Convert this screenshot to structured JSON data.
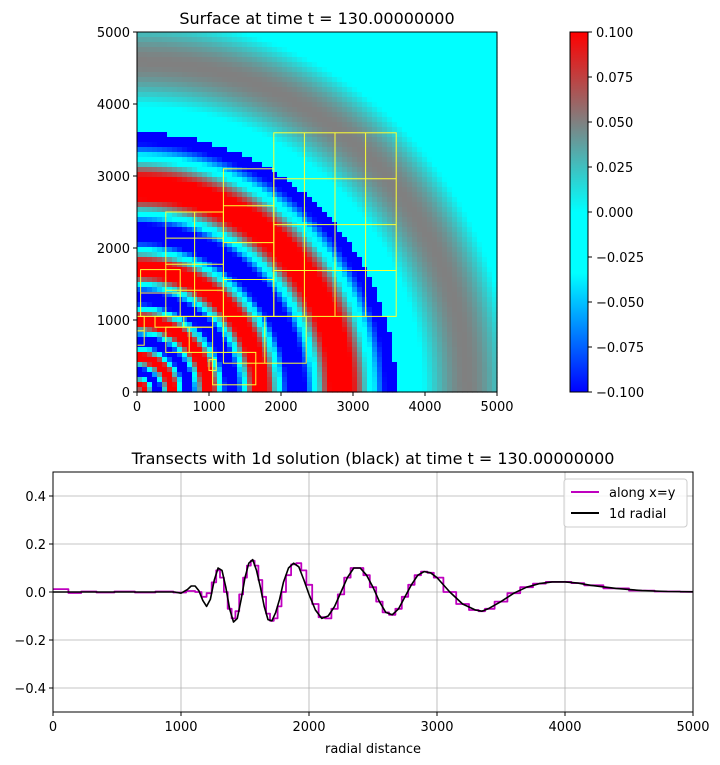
{
  "chart_data": [
    {
      "type": "heatmap",
      "title": "Surface at time t =   130.00000000",
      "xlim": [
        0,
        5000
      ],
      "ylim": [
        0,
        5000
      ],
      "xticks": [
        "0",
        "1000",
        "2000",
        "3000",
        "4000",
        "5000"
      ],
      "yticks": [
        "0",
        "1000",
        "2000",
        "3000",
        "4000",
        "5000"
      ],
      "field": {
        "kind": "radial outward-propagating wave (cylindrical, centered at origin)",
        "front_radius": 5200,
        "wave_radii_peak": [
          1560,
          1900,
          2340,
          2930
        ],
        "background_value": 0.0
      },
      "colorbar": {
        "range": [
          -0.1,
          0.1
        ],
        "ticks": [
          "0.100",
          "0.075",
          "0.050",
          "0.025",
          "0.000",
          "−0.025",
          "−0.050",
          "−0.075",
          "−0.100"
        ],
        "colormap": [
          "#0000ff",
          "#00ffff",
          "#808080",
          "#ff0000"
        ]
      },
      "grid_patches": [
        {
          "x": [
            1900,
            3600
          ],
          "y": [
            1050,
            3600
          ],
          "cols": 4,
          "rows": 4
        },
        {
          "x": [
            1200,
            1900
          ],
          "y": [
            1050,
            3100
          ],
          "cols": 1,
          "rows": 4
        },
        {
          "x": [
            400,
            1200
          ],
          "y": [
            1050,
            2500
          ],
          "cols": 2,
          "rows": 4
        },
        {
          "x": [
            50,
            600
          ],
          "y": [
            1050,
            1700
          ],
          "cols": 1,
          "rows": 2
        },
        {
          "x": [
            1200,
            2350
          ],
          "y": [
            400,
            1050
          ],
          "cols": 2,
          "rows": 1
        },
        {
          "x": [
            250,
            1050
          ],
          "y": [
            900,
            1050
          ],
          "cols": 2,
          "rows": 1
        },
        {
          "x": [
            400,
            1050
          ],
          "y": [
            550,
            900
          ],
          "cols": 2,
          "rows": 1
        },
        {
          "x": [
            1050,
            1650
          ],
          "y": [
            100,
            550
          ],
          "cols": 1,
          "rows": 1
        },
        {
          "x": [
            1000,
            1100
          ],
          "y": [
            300,
            450
          ],
          "cols": 1,
          "rows": 1
        },
        {
          "x": [
            0,
            100
          ],
          "y": [
            650,
            1050
          ],
          "cols": 1,
          "rows": 2
        }
      ],
      "patch_color": "#ffff33"
    },
    {
      "type": "line",
      "title": "Transects with 1d solution (black) at time t =   130.00000000",
      "xlabel": "radial distance",
      "xlim": [
        0,
        5000
      ],
      "ylim": [
        -0.5,
        0.5
      ],
      "xticks": [
        "0",
        "1000",
        "2000",
        "3000",
        "4000",
        "5000"
      ],
      "yticks": [
        "−0.4",
        "−0.2",
        "0.0",
        "0.2",
        "0.4"
      ],
      "grid": true,
      "legend_position": "top-right",
      "series": [
        {
          "name": "along x=y",
          "color": "#bf00bf",
          "style": "step",
          "x": [
            0,
            80,
            160,
            280,
            400,
            560,
            720,
            880,
            1000,
            1080,
            1140,
            1180,
            1220,
            1260,
            1290,
            1320,
            1350,
            1380,
            1410,
            1440,
            1470,
            1500,
            1530,
            1560,
            1590,
            1620,
            1650,
            1680,
            1710,
            1740,
            1770,
            1800,
            1840,
            1880,
            1920,
            1960,
            2000,
            2050,
            2100,
            2150,
            2200,
            2250,
            2300,
            2350,
            2400,
            2450,
            2500,
            2550,
            2600,
            2650,
            2700,
            2750,
            2800,
            2850,
            2900,
            2950,
            3000,
            3100,
            3200,
            3300,
            3350,
            3400,
            3500,
            3600,
            3700,
            3800,
            3900,
            4000,
            4100,
            4200,
            4400,
            4600,
            4800,
            5000
          ],
          "y": [
            0.012,
            0.012,
            -0.004,
            0.002,
            -0.002,
            0.002,
            -0.002,
            0.002,
            -0.002,
            0.004,
            0.0,
            -0.02,
            -0.005,
            0.04,
            0.09,
            0.06,
            0.0,
            -0.07,
            -0.11,
            -0.08,
            -0.01,
            0.06,
            0.11,
            0.13,
            0.11,
            0.05,
            -0.02,
            -0.09,
            -0.12,
            -0.11,
            -0.06,
            0.0,
            0.07,
            0.115,
            0.12,
            0.09,
            0.03,
            -0.05,
            -0.105,
            -0.11,
            -0.07,
            -0.01,
            0.06,
            0.1,
            0.1,
            0.07,
            0.02,
            -0.04,
            -0.085,
            -0.095,
            -0.07,
            -0.02,
            0.03,
            0.07,
            0.085,
            0.08,
            0.06,
            0.0,
            -0.05,
            -0.075,
            -0.08,
            -0.07,
            -0.04,
            -0.005,
            0.02,
            0.035,
            0.042,
            0.042,
            0.037,
            0.028,
            0.015,
            0.006,
            0.002,
            0.001
          ]
        },
        {
          "name": "1d radial",
          "color": "#000000",
          "style": "line",
          "x": [
            0,
            400,
            800,
            950,
            1000,
            1050,
            1080,
            1110,
            1140,
            1170,
            1200,
            1230,
            1260,
            1290,
            1320,
            1350,
            1380,
            1410,
            1440,
            1470,
            1500,
            1530,
            1560,
            1590,
            1620,
            1650,
            1680,
            1710,
            1740,
            1770,
            1800,
            1840,
            1880,
            1920,
            1960,
            2000,
            2050,
            2100,
            2150,
            2200,
            2250,
            2300,
            2350,
            2400,
            2450,
            2500,
            2550,
            2600,
            2650,
            2700,
            2750,
            2800,
            2850,
            2900,
            2950,
            3000,
            3100,
            3200,
            3300,
            3350,
            3400,
            3500,
            3600,
            3700,
            3800,
            3900,
            4000,
            4100,
            4200,
            4400,
            4600,
            4800,
            5000
          ],
          "y": [
            0.0,
            0.0,
            0.0,
            0.0,
            -0.005,
            0.01,
            0.025,
            0.025,
            0.005,
            -0.035,
            -0.06,
            -0.03,
            0.05,
            0.1,
            0.09,
            0.02,
            -0.07,
            -0.125,
            -0.11,
            -0.03,
            0.06,
            0.12,
            0.135,
            0.09,
            0.02,
            -0.06,
            -0.115,
            -0.12,
            -0.085,
            -0.03,
            0.04,
            0.1,
            0.12,
            0.105,
            0.05,
            -0.01,
            -0.075,
            -0.11,
            -0.1,
            -0.06,
            0.0,
            0.06,
            0.1,
            0.1,
            0.07,
            0.02,
            -0.04,
            -0.085,
            -0.095,
            -0.07,
            -0.02,
            0.03,
            0.07,
            0.085,
            0.08,
            0.06,
            0.0,
            -0.05,
            -0.075,
            -0.08,
            -0.07,
            -0.04,
            -0.005,
            0.02,
            0.035,
            0.042,
            0.042,
            0.037,
            0.028,
            0.015,
            0.006,
            0.002,
            0.001
          ]
        }
      ]
    }
  ]
}
